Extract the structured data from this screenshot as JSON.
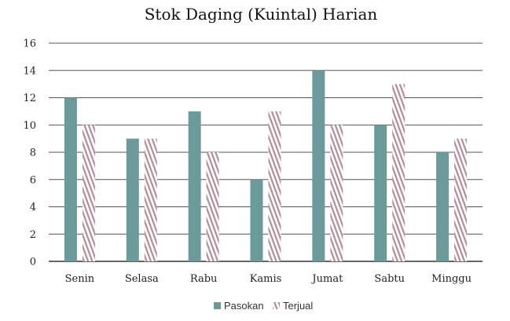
{
  "chart_data": {
    "type": "bar",
    "title": "Stok Daging (Kuintal) Harian",
    "xlabel": "",
    "ylabel": "",
    "ylim": [
      0,
      16
    ],
    "yticks": [
      0,
      2,
      4,
      6,
      8,
      10,
      12,
      14,
      16
    ],
    "categories": [
      "Senin",
      "Selasa",
      "Rabu",
      "Kamis",
      "Jumat",
      "Sabtu",
      "Minggu"
    ],
    "series": [
      {
        "name": "Pasokan",
        "values": [
          12,
          9,
          11,
          6,
          14,
          10,
          8
        ],
        "color": "#6a9a9a",
        "fill": "solid"
      },
      {
        "name": "Terjual",
        "values": [
          10,
          9,
          8,
          11,
          10,
          13,
          9
        ],
        "color": "#b48a96",
        "fill": "hatched"
      }
    ],
    "grid": true,
    "legend_position": "bottom"
  }
}
